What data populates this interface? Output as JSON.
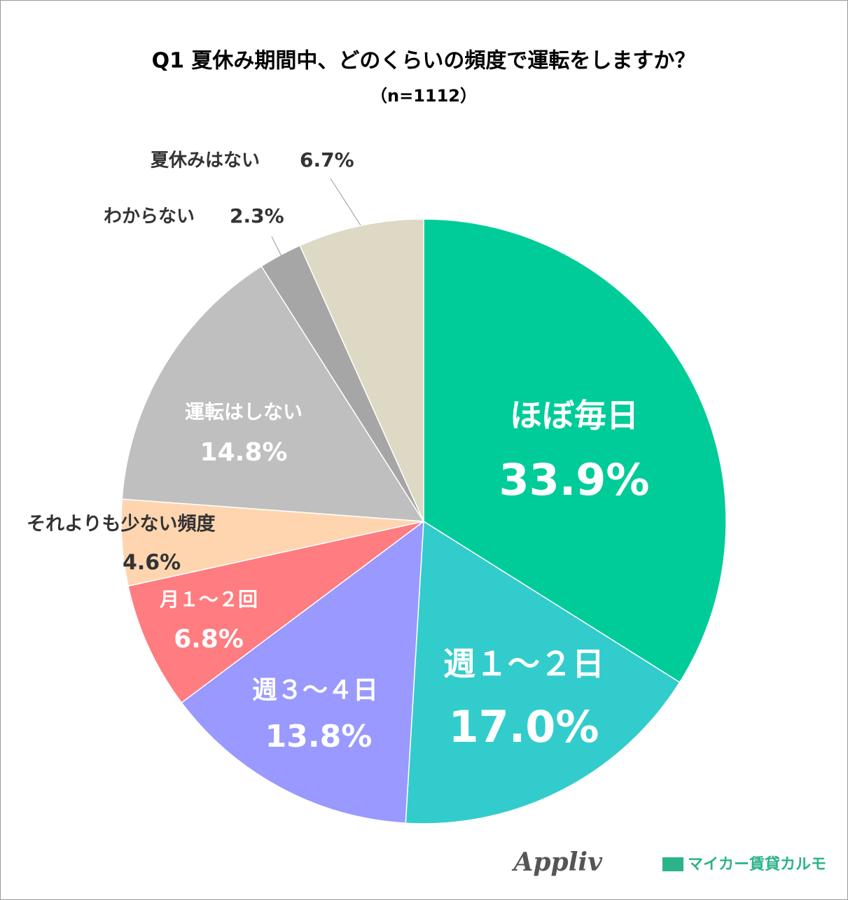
{
  "chart_data": {
    "type": "pie",
    "title": "Q1 夏休み期間中、どのくらいの頻度で運転をしますか？",
    "subtitle": "（n=1112）",
    "categories": [
      "ほぼ毎日",
      "週１～２日",
      "週３～４日",
      "月１～２回",
      "それよりも少ない頻度",
      "運転はしない",
      "わからない",
      "夏休みはない"
    ],
    "values": [
      33.9,
      17,
      13.8,
      6.8,
      4.6,
      14.8,
      2.3,
      6.7
    ],
    "value_labels": [
      "33.9%",
      "17.0%",
      "13.8%",
      "6.8%",
      "4.6%",
      "14.8%",
      "2.3%",
      "6.7%"
    ],
    "colors": [
      "#00cc99",
      "#33cccc",
      "#9999ff",
      "#ff7c80",
      "#ffd5b0",
      "#bfbfbf",
      "#a6a6a6",
      "#ddd9c4"
    ],
    "source_logos": [
      "Appliv",
      "マイカー賃貸カルモ"
    ]
  }
}
